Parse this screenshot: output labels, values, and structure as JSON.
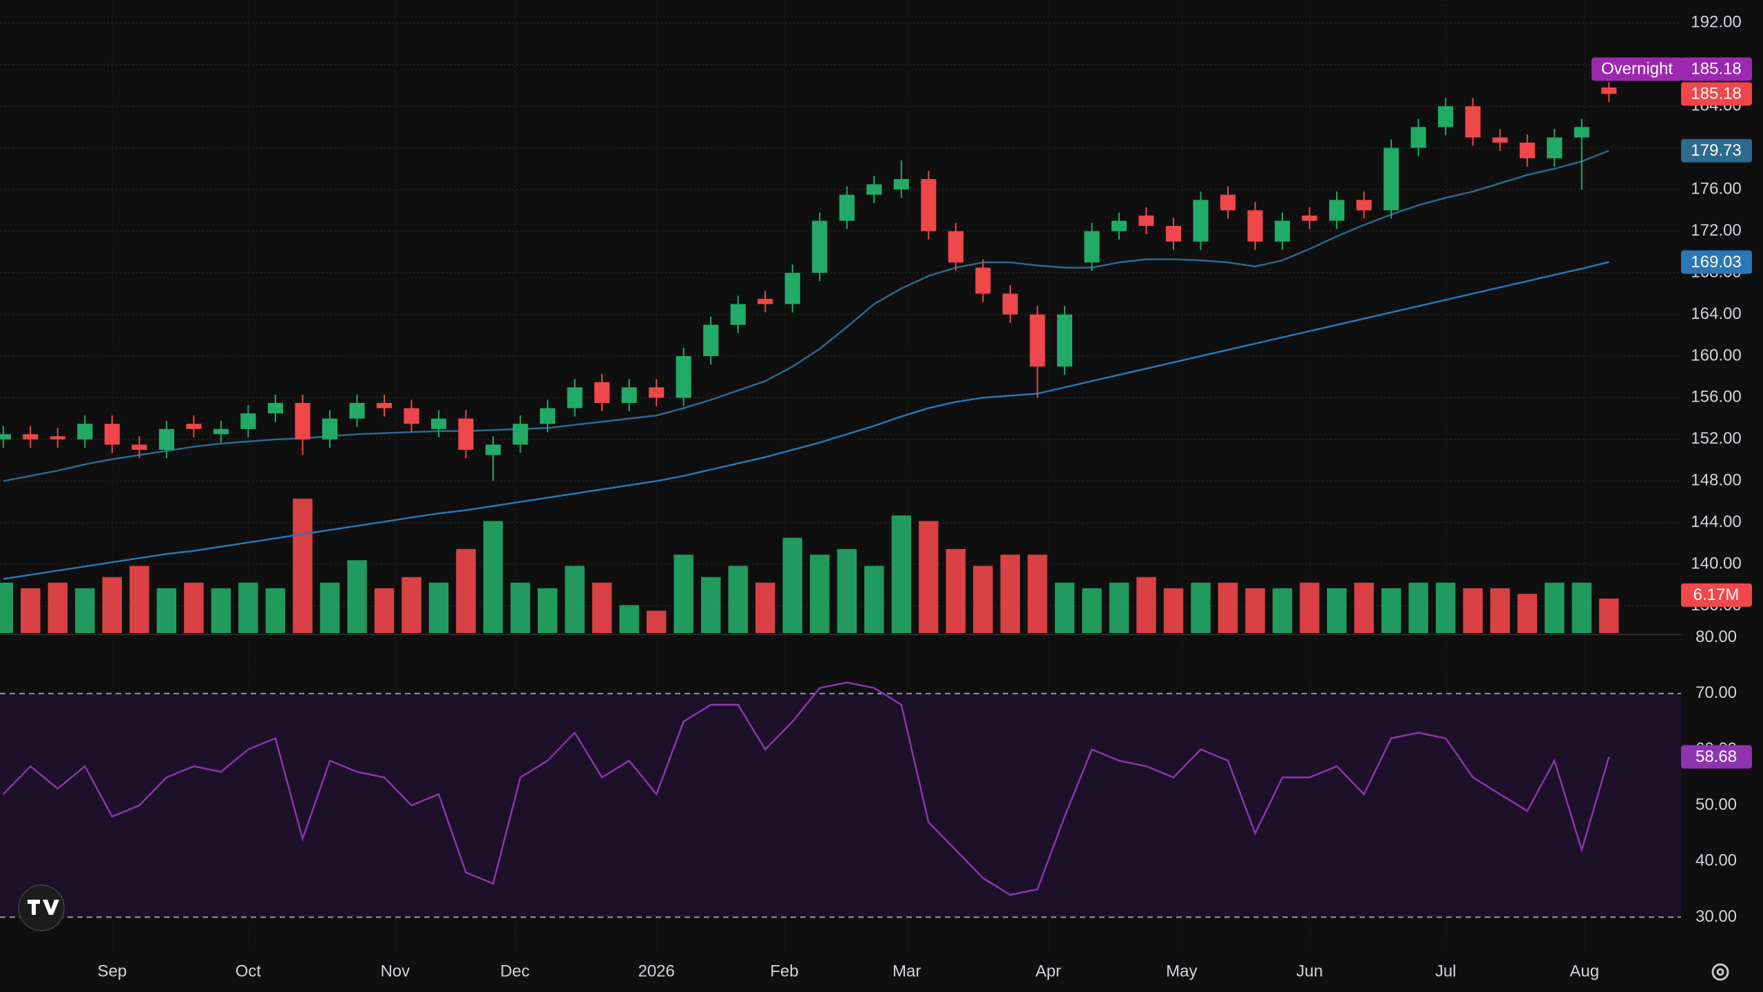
{
  "chart_data": {
    "type": "candlestick",
    "xlim": [
      -0.12,
      61.65
    ],
    "xticks": [
      {
        "value": 4,
        "label": "Sep"
      },
      {
        "value": 9,
        "label": "Oct"
      },
      {
        "value": 14.4,
        "label": "Nov"
      },
      {
        "value": 18.8,
        "label": "Dec"
      },
      {
        "value": 24,
        "label": "2026"
      },
      {
        "value": 28.7,
        "label": "Feb"
      },
      {
        "value": 33.2,
        "label": "Mar"
      },
      {
        "value": 38.4,
        "label": "Apr"
      },
      {
        "value": 43.3,
        "label": "May"
      },
      {
        "value": 48,
        "label": "Jun"
      },
      {
        "value": 53,
        "label": "Jul"
      },
      {
        "value": 58.1,
        "label": "Aug"
      }
    ],
    "ylim": [
      133.4,
      194.2
    ],
    "yticks": [
      {
        "value": 136,
        "label": "136.00"
      },
      {
        "value": 140,
        "label": "140.00"
      },
      {
        "value": 144,
        "label": "144.00"
      },
      {
        "value": 148,
        "label": "148.00"
      },
      {
        "value": 152,
        "label": "152.00"
      },
      {
        "value": 156,
        "label": "156.00"
      },
      {
        "value": 160,
        "label": "160.00"
      },
      {
        "value": 164,
        "label": "164.00"
      },
      {
        "value": 168,
        "label": "168.00"
      },
      {
        "value": 172,
        "label": "172.00"
      },
      {
        "value": 176,
        "label": "176.00"
      },
      {
        "value": 180,
        "label": "180.00"
      },
      {
        "value": 184,
        "label": "184.00"
      },
      {
        "value": 188,
        "label": "188.00"
      },
      {
        "value": 192,
        "label": "192.00"
      }
    ],
    "grid": true,
    "up_color": "#22ab66",
    "down_color": "#f0474a",
    "open": [
      152,
      152.5,
      152.3,
      152,
      153.5,
      151.5,
      151,
      153.5,
      152.5,
      153,
      154.5,
      155.5,
      152,
      154,
      155.5,
      155,
      153,
      154,
      150.5,
      151.5,
      153.5,
      155,
      157.5,
      155.5,
      157,
      156,
      160,
      163,
      165.5,
      165,
      168,
      173,
      175.5,
      176,
      177,
      172,
      168.5,
      166,
      164,
      159,
      169,
      172,
      173.5,
      172.5,
      171,
      175.5,
      174,
      171,
      173.5,
      173,
      175,
      174,
      180,
      182,
      184,
      181,
      180.5,
      179,
      181,
      185.8
    ],
    "high": [
      153.3,
      153.3,
      153.1,
      154.3,
      154.3,
      152.3,
      153.8,
      154.3,
      153.8,
      155.3,
      156.3,
      156.3,
      154.8,
      156.3,
      156.3,
      155.8,
      154.8,
      154.8,
      152.3,
      154.3,
      155.8,
      157.8,
      158.3,
      157.8,
      157.8,
      160.8,
      163.8,
      165.8,
      166.3,
      168.8,
      173.8,
      176.3,
      177.3,
      178.8,
      177.8,
      172.8,
      169.3,
      166.8,
      164.8,
      164.8,
      172.8,
      173.8,
      174.3,
      173.3,
      175.8,
      176.3,
      174.8,
      173.8,
      174.3,
      175.8,
      175.8,
      180.8,
      182.8,
      184.8,
      184.8,
      181.8,
      181.3,
      181.8,
      182.8,
      186.3
    ],
    "low": [
      151.2,
      151.2,
      151.2,
      151.2,
      150.7,
      150.2,
      150.2,
      152.2,
      151.7,
      152.2,
      153.7,
      150.5,
      151.2,
      153.2,
      154.2,
      152.7,
      152.2,
      150.2,
      148,
      150.7,
      152.7,
      154.2,
      154.7,
      154.7,
      155.2,
      155.2,
      159.2,
      162.2,
      164.2,
      164.2,
      167.2,
      172.2,
      174.7,
      175.2,
      171.2,
      168.2,
      165.2,
      163.2,
      156,
      158.2,
      168.2,
      171.2,
      171.7,
      170.2,
      170.2,
      173.2,
      170.2,
      170.2,
      172.2,
      172.2,
      173.2,
      173.2,
      179.2,
      181.2,
      180.2,
      179.7,
      178.2,
      178.2,
      176,
      184.4
    ],
    "close": [
      152.5,
      152,
      152,
      153.5,
      151.5,
      151,
      153,
      153,
      153,
      154.5,
      155.5,
      152,
      154,
      155.5,
      155,
      153.5,
      154,
      151,
      151.5,
      153.5,
      155,
      157,
      155.5,
      157,
      156,
      160,
      163,
      165,
      165,
      168,
      173,
      175.5,
      176.5,
      177,
      172,
      169,
      166,
      164,
      159,
      164,
      172,
      173,
      172.5,
      171,
      175,
      174,
      171,
      173,
      173,
      175,
      174,
      180,
      182,
      184,
      181,
      180.5,
      179,
      181,
      182,
      185.18
    ],
    "overnight": {
      "label": "Overnight",
      "price": 185.18,
      "color": "#9c27b0"
    },
    "moving_averages": [
      {
        "color": "#2c6a8e",
        "values": [
          148,
          148.5,
          149,
          149.6,
          150.1,
          150.5,
          150.9,
          151.3,
          151.6,
          151.8,
          152,
          152.1,
          152.3,
          152.5,
          152.6,
          152.7,
          152.8,
          152.8,
          152.9,
          153,
          153.1,
          153.4,
          153.7,
          154,
          154.3,
          155,
          155.8,
          156.7,
          157.6,
          159,
          160.7,
          162.8,
          165,
          166.5,
          167.7,
          168.5,
          169,
          169,
          168.7,
          168.5,
          168.5,
          169,
          169.3,
          169.3,
          169.2,
          169,
          168.6,
          169.2,
          170.3,
          171.5,
          172.6,
          173.6,
          174.5,
          175.2,
          175.8,
          176.6,
          177.4,
          178,
          178.7,
          179.73
        ]
      },
      {
        "color": "#2a78b8",
        "values": [
          138.6,
          139,
          139.4,
          139.8,
          140.2,
          140.6,
          141,
          141.3,
          141.7,
          142.1,
          142.5,
          142.9,
          143.3,
          143.7,
          144.1,
          144.5,
          144.9,
          145.2,
          145.6,
          146,
          146.4,
          146.8,
          147.2,
          147.6,
          148,
          148.5,
          149.1,
          149.7,
          150.3,
          151,
          151.7,
          152.5,
          153.3,
          154.2,
          155,
          155.6,
          156,
          156.2,
          156.4,
          157,
          157.6,
          158.2,
          158.8,
          159.4,
          160,
          160.6,
          161.2,
          161.8,
          162.4,
          163,
          163.6,
          164.2,
          164.8,
          165.4,
          166,
          166.6,
          167.2,
          167.8,
          168.4,
          169.03
        ]
      }
    ],
    "volume": {
      "ylim": [
        0,
        113
      ],
      "values": [
        9,
        8,
        9,
        8,
        10,
        12,
        8,
        9,
        8,
        9,
        8,
        24,
        9,
        13,
        8,
        10,
        9,
        15,
        20,
        9,
        8,
        12,
        9,
        5,
        4,
        14,
        10,
        12,
        9,
        17,
        14,
        15,
        12,
        21,
        20,
        15,
        12,
        14,
        14,
        9,
        8,
        9,
        10,
        8,
        9,
        9,
        8,
        8,
        9,
        8,
        9,
        8,
        9,
        9,
        8,
        8,
        7,
        9,
        9,
        6.17
      ],
      "value_labels": [
        null,
        null,
        null,
        null,
        null,
        null,
        null,
        null,
        null,
        null,
        null,
        null,
        null,
        null,
        null,
        null,
        null,
        null,
        null,
        null,
        null,
        null,
        null,
        null,
        null,
        null,
        null,
        null,
        null,
        null,
        null,
        null,
        null,
        null,
        null,
        null,
        null,
        null,
        null,
        null,
        null,
        null,
        null,
        null,
        null,
        null,
        null,
        null,
        null,
        null,
        null,
        null,
        null,
        null,
        null,
        null,
        null,
        null,
        null,
        "6.17M"
      ]
    },
    "rsi": {
      "color": "#8e34b0",
      "ylim": [
        23.4,
        80.2
      ],
      "yticks": [
        {
          "value": 30,
          "label": "30.00"
        },
        {
          "value": 40,
          "label": "40.00"
        },
        {
          "value": 50,
          "label": "50.00"
        },
        {
          "value": 60,
          "label": "60.00"
        },
        {
          "value": 70,
          "label": "70.00"
        },
        {
          "value": 80,
          "label": "80.00"
        }
      ],
      "band": [
        30,
        70
      ],
      "values": [
        52,
        57,
        53,
        57,
        48,
        50,
        55,
        57,
        56,
        60,
        62,
        44,
        58,
        56,
        55,
        50,
        52,
        38,
        36,
        55,
        58,
        63,
        55,
        58,
        52,
        65,
        68,
        68,
        60,
        65,
        71,
        72,
        71,
        68,
        47,
        42,
        37,
        34,
        35,
        48,
        60,
        58,
        57,
        55,
        60,
        58,
        45,
        55,
        55,
        57,
        52,
        62,
        63,
        62,
        55,
        52,
        49,
        58,
        42,
        58.68
      ]
    }
  }
}
